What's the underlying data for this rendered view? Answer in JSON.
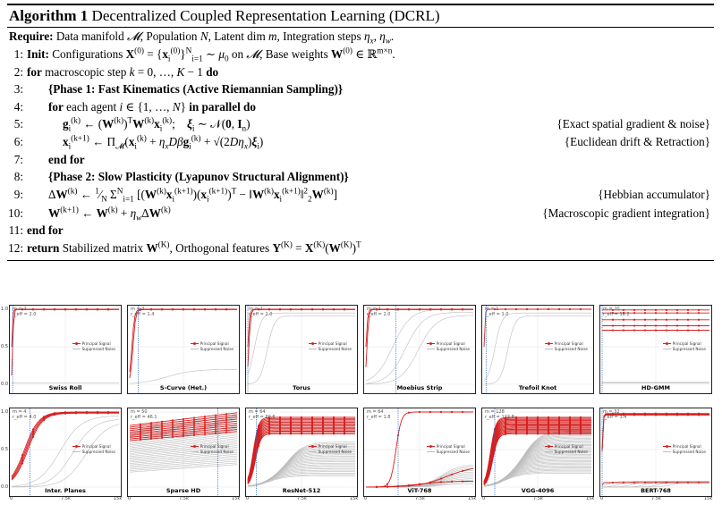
{
  "algorithm": {
    "label": "Algorithm 1",
    "title": "Decentralized Coupled Representation Learning (DCRL)",
    "require_label": "Require:",
    "require_text_a": "Data manifold ",
    "require_text_b": ", Population ",
    "require_text_c": ", Latent dim ",
    "require_text_d": ", Integration steps ",
    "lines": [
      {
        "num": "1:",
        "kw": "Init:",
        "text_a": "Configurations ",
        "text_b": " on ",
        "text_c": ", Base weights "
      },
      {
        "num": "2:",
        "kw": "for",
        "text": "macroscopic step ",
        "kw2": "do"
      },
      {
        "num": "3:",
        "text": "{Phase 1: Fast Kinematics (Active Riemannian Sampling)}"
      },
      {
        "num": "4:",
        "kw": "for",
        "text": "each agent ",
        "kw2": "in parallel do"
      },
      {
        "num": "5:",
        "comment": "{Exact spatial gradient & noise}"
      },
      {
        "num": "6:",
        "comment": "{Euclidean drift & Retraction}"
      },
      {
        "num": "7:",
        "kw": "end for"
      },
      {
        "num": "8:",
        "text": "{Phase 2: Slow Plasticity (Lyapunov Structural Alignment)}"
      },
      {
        "num": "9:",
        "comment": "{Hebbian accumulator}"
      },
      {
        "num": "10:",
        "comment": "{Macroscopic gradient integration}"
      },
      {
        "num": "11:",
        "kw": "end for"
      },
      {
        "num": "12:",
        "kw": "return",
        "text_a": "Stabilized matrix ",
        "text_b": ", Orthogonal features "
      }
    ]
  },
  "figure": {
    "legend_signal": "Principal Signal",
    "legend_noise": "Suppressed Noise",
    "y_ticks": [
      "1.0",
      "0.5",
      "0.0"
    ],
    "x_ticks": [
      "0",
      "7.5k",
      "15k"
    ],
    "panels": [
      {
        "name": "Swiss Roll",
        "m": "m = 2",
        "r": "r_eff = 2.0",
        "signal": 2,
        "noise": 1,
        "sig_k": 200,
        "sig_mid": 0.0,
        "noise_k": 0,
        "noise_mid": 1,
        "noise_level": 0.02,
        "vline": 0.01,
        "kind": "fast"
      },
      {
        "name": "S-Curve (Het.)",
        "m": "m = 2",
        "r": "r_eff = 1.4",
        "signal": 2,
        "noise": 1,
        "sig_k": 80,
        "sig_mid": 0.02,
        "noise_k": 8,
        "noise_mid": 0.35,
        "noise_level": 0.2,
        "vline": 0.08,
        "kind": "fast"
      },
      {
        "name": "Torus",
        "m": "m = 2",
        "r": "r_eff = 2.0",
        "signal": 2,
        "noise": 2,
        "sig_k": 120,
        "sig_mid": 0.0,
        "noise_k": 30,
        "noise_mid": 0.06,
        "noise_level": 0.95,
        "vline": 0.0,
        "kind": "fast"
      },
      {
        "name": "Moebius Strip",
        "m": "m = 2",
        "r": "r_eff = 2.0",
        "signal": 2,
        "noise": 3,
        "sig_k": 120,
        "sig_mid": 0.0,
        "noise_k": 12,
        "noise_mid": 0.25,
        "noise_level": 1.0,
        "vline": 0.28,
        "kind": "fast"
      },
      {
        "name": "Trefoil Knot",
        "m": "m = 1",
        "r": "r_eff = 1.0",
        "signal": 1,
        "noise": 2,
        "sig_k": 200,
        "sig_mid": 0.0,
        "noise_k": 30,
        "noise_mid": 0.1,
        "noise_level": 0.95,
        "vline": 0.02,
        "kind": "fast"
      },
      {
        "name": "HD-GMM",
        "m": "m = 20",
        "r": "r_eff = 18.2",
        "signal": 5,
        "noise": 12,
        "sig_k": 200,
        "sig_mid": 0.0,
        "noise_k": 0,
        "noise_mid": 1,
        "noise_level": 0.0,
        "vline": 0.0,
        "kind": "levels"
      },
      {
        "name": "Inter. Planes",
        "m": "m = 4",
        "r": "r_eff = 4.0",
        "signal": 4,
        "noise": 3,
        "sig_k": 15,
        "sig_mid": 0.12,
        "noise_k": 10,
        "noise_mid": 0.45,
        "noise_level": 0.95,
        "vline": 0.17,
        "kind": "slow"
      },
      {
        "name": "Sparse HD",
        "m": "m = 50",
        "r": "r_eff = 46.1",
        "signal": 10,
        "noise": 30,
        "sig_k": 0,
        "sig_mid": 0,
        "noise_k": 0,
        "noise_mid": 0,
        "noise_level": 0,
        "vline": 0.82,
        "kind": "linear"
      },
      {
        "name": "ResNet-512",
        "m": "m = 64",
        "r": "r_eff = 60.6",
        "signal": 14,
        "noise": 25,
        "sig_k": 40,
        "sig_mid": 0.05,
        "noise_k": 12,
        "noise_mid": 0.2,
        "noise_level": 0.6,
        "vline": 0.08,
        "kind": "dense"
      },
      {
        "name": "ViT-768",
        "m": "m = 64",
        "r": "r_eff = 1.8",
        "signal": 3,
        "noise": 12,
        "sig_k": 40,
        "sig_mid": 0.28,
        "noise_k": 12,
        "noise_mid": 0.7,
        "noise_level": 0.3,
        "vline": 0.3,
        "kind": "vit"
      },
      {
        "name": "VGG-4096",
        "m": "m = 128",
        "r": "r_eff = 122.8",
        "signal": 16,
        "noise": 35,
        "sig_k": 40,
        "sig_mid": 0.06,
        "noise_k": 12,
        "noise_mid": 0.2,
        "noise_level": 0.75,
        "vline": 0.1,
        "kind": "dense"
      },
      {
        "name": "BERT-768",
        "m": "m = 32",
        "r": "r_eff = 3.4",
        "signal": 4,
        "noise": 6,
        "sig_k": 200,
        "sig_mid": 0.0,
        "noise_k": 20,
        "noise_mid": 0.05,
        "noise_level": 0.08,
        "vline": 0.0,
        "kind": "bert"
      }
    ]
  }
}
